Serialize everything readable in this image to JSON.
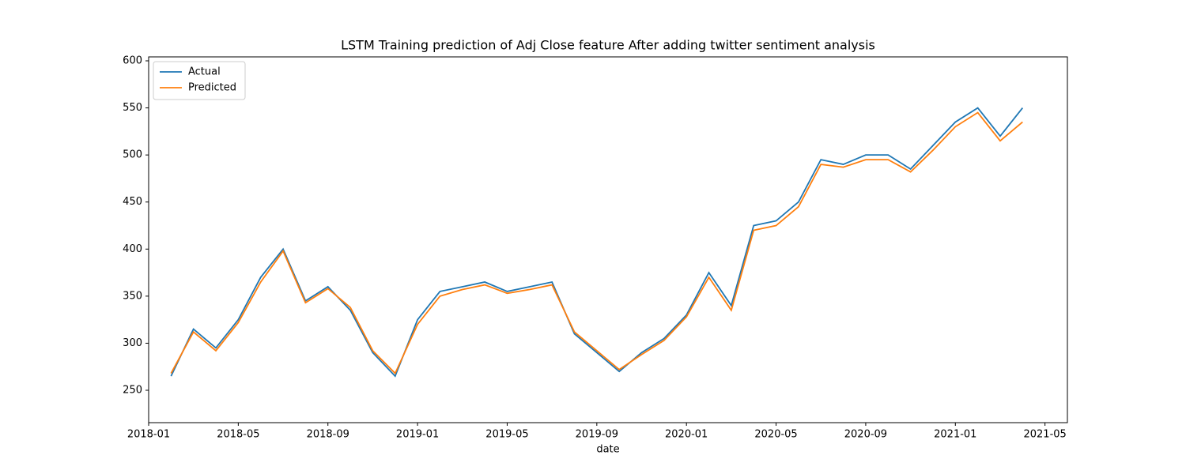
{
  "chart_data": {
    "type": "line",
    "title": "LSTM Training prediction of Adj Close feature After adding twitter sentiment analysis",
    "xlabel": "date",
    "x": [
      "2018-02",
      "2018-03",
      "2018-04",
      "2018-05",
      "2018-06",
      "2018-07",
      "2018-08",
      "2018-09",
      "2018-10",
      "2018-11",
      "2018-12",
      "2019-01",
      "2019-02",
      "2019-03",
      "2019-04",
      "2019-05",
      "2019-06",
      "2019-07",
      "2019-08",
      "2019-09",
      "2019-10",
      "2019-11",
      "2019-12",
      "2020-01",
      "2020-02",
      "2020-03",
      "2020-04",
      "2020-05",
      "2020-06",
      "2020-07",
      "2020-08",
      "2020-09",
      "2020-10",
      "2020-11",
      "2020-12",
      "2021-01",
      "2021-02",
      "2021-03",
      "2021-04"
    ],
    "series": [
      {
        "name": "Actual",
        "color": "#1f77b4",
        "values": [
          265,
          315,
          295,
          325,
          370,
          400,
          345,
          360,
          335,
          290,
          265,
          325,
          355,
          360,
          365,
          355,
          360,
          365,
          310,
          290,
          270,
          290,
          305,
          330,
          375,
          340,
          425,
          430,
          450,
          495,
          490,
          500,
          500,
          485,
          510,
          535,
          550,
          520,
          550
        ]
      },
      {
        "name": "Predicted",
        "color": "#ff7f0e",
        "values": [
          268,
          312,
          292,
          322,
          365,
          398,
          343,
          358,
          338,
          292,
          268,
          320,
          350,
          357,
          362,
          353,
          357,
          362,
          312,
          292,
          272,
          288,
          303,
          328,
          370,
          335,
          420,
          425,
          445,
          490,
          487,
          495,
          495,
          482,
          505,
          530,
          545,
          515,
          535
        ]
      }
    ],
    "xlim": [
      "2018-01",
      "2021-06"
    ],
    "xticks": [
      "2018-01",
      "2018-05",
      "2018-09",
      "2019-01",
      "2019-05",
      "2019-09",
      "2020-01",
      "2020-05",
      "2020-09",
      "2021-01",
      "2021-05"
    ],
    "ylim": [
      215.6,
      604.2
    ],
    "yticks": [
      250,
      300,
      350,
      400,
      450,
      500,
      550,
      600
    ],
    "legend": "upper left"
  }
}
